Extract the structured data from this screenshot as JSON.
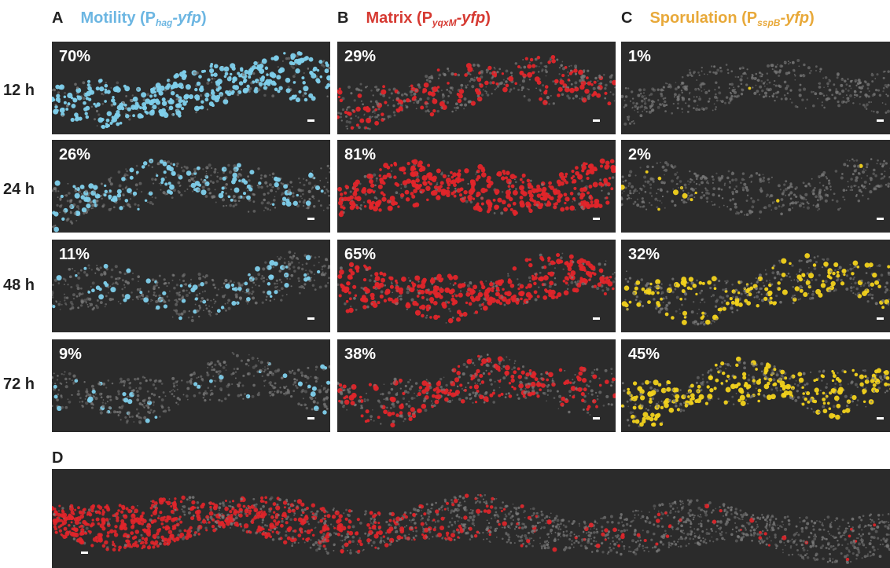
{
  "columns": [
    {
      "letter": "A",
      "name": "Motility (P",
      "gene": "hag",
      "reporter": "-yfp",
      "close": ")",
      "color": "#6cb6e2",
      "fluor": "#7fd0ec"
    },
    {
      "letter": "B",
      "name": "Matrix (P",
      "gene": "yqxM",
      "reporter": "-yfp",
      "close": ")",
      "color": "#d63a32",
      "fluor": "#e2252a"
    },
    {
      "letter": "C",
      "name": "Sporulation (P",
      "gene": "sspB",
      "reporter": "-yfp",
      "close": ")",
      "color": "#e8a93a",
      "fluor": "#f2d21c"
    }
  ],
  "rows": [
    "12 h",
    "24 h",
    "48 h",
    "72 h"
  ],
  "percentages": [
    [
      "70%",
      "29%",
      "1%"
    ],
    [
      "26%",
      "81%",
      "2%"
    ],
    [
      "11%",
      "65%",
      "32%"
    ],
    [
      "9%",
      "38%",
      "45%"
    ]
  ],
  "fractions": [
    [
      0.7,
      0.29,
      0.01
    ],
    [
      0.26,
      0.81,
      0.02
    ],
    [
      0.11,
      0.65,
      0.32
    ],
    [
      0.09,
      0.38,
      0.45
    ]
  ],
  "panel_d": {
    "letter": "D"
  },
  "colors": {
    "background": "#2b2b2b",
    "biofilm_gray": "#7a7a7a",
    "label": "#222222"
  }
}
